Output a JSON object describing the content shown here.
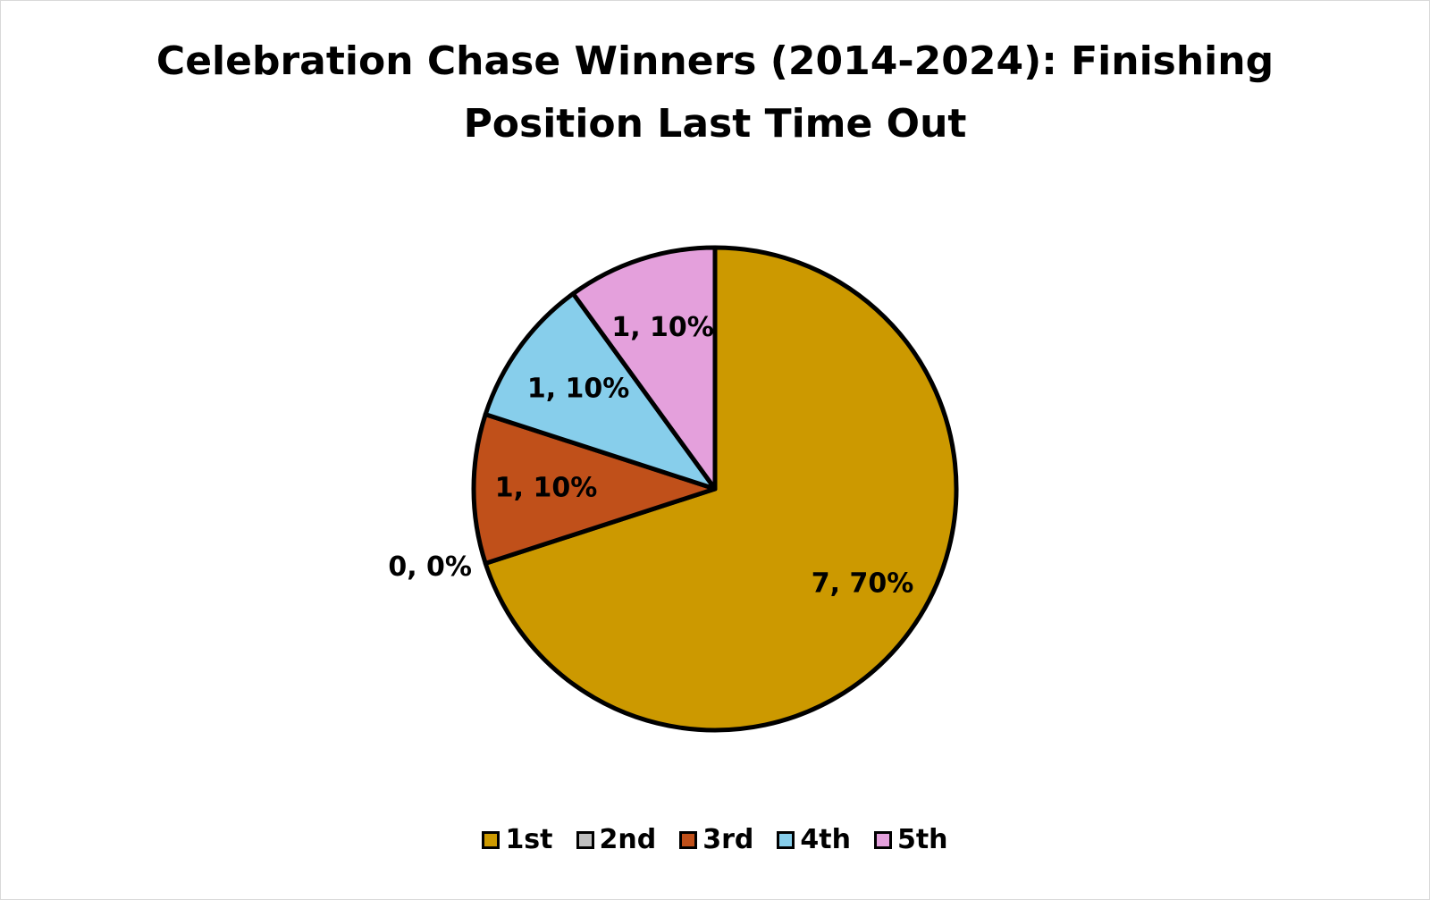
{
  "chart_data": {
    "type": "pie",
    "title_lines": [
      "Celebration Chase Winners (2014-2024): Finishing",
      "Position Last Time Out"
    ],
    "categories": [
      "1st",
      "2nd",
      "3rd",
      "4th",
      "5th"
    ],
    "values": [
      7,
      0,
      1,
      1,
      1
    ],
    "data_labels": [
      "7, 70%",
      "0, 0%",
      "1, 10%",
      "1, 10%",
      "1, 10%"
    ],
    "colors": [
      "#CC9900",
      "#BFBFBF",
      "#C0501A",
      "#87CEEB",
      "#E4A0DC"
    ],
    "legend_position": "bottom",
    "start_angle": "12 o'clock",
    "direction": "clockwise"
  }
}
